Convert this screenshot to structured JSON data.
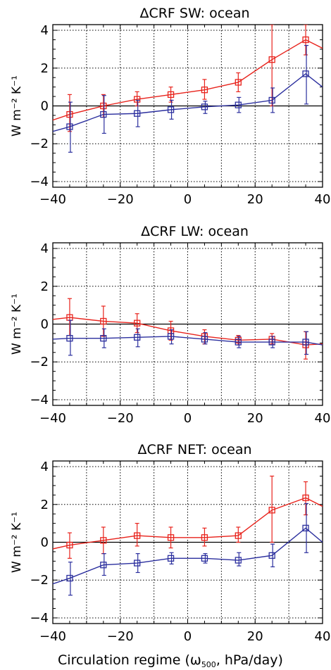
{
  "xlabel": "Circulation regime (ω",
  "xlabel_sub": "500",
  "xlabel_tail": ", hPa/day)",
  "colors": {
    "red": "#e8231c",
    "blue": "#2b2f9e",
    "grid": "#000000"
  },
  "chart_data": [
    {
      "type": "line",
      "title": "ΔCRF SW: ocean",
      "ylabel": "W m⁻² K⁻¹",
      "xlim": [
        -40,
        40
      ],
      "ylim": [
        -4.3,
        4.3
      ],
      "xticks": [
        -40,
        -20,
        0,
        20,
        40
      ],
      "yticks": [
        -4,
        -2,
        0,
        2,
        4
      ],
      "grid": true,
      "x": [
        -35,
        -25,
        -15,
        -5,
        5,
        15,
        25,
        35
      ],
      "series": [
        {
          "color": "red",
          "values": [
            -0.45,
            0.0,
            0.35,
            0.6,
            0.85,
            1.25,
            2.45,
            3.5
          ],
          "err_lo": [
            -1.35,
            -0.6,
            0.0,
            0.2,
            0.35,
            0.75,
            0.0,
            2.7
          ],
          "err_hi": [
            0.6,
            0.6,
            0.75,
            1.0,
            1.4,
            1.75,
            4.3,
            4.3
          ],
          "ends": [
            -0.75,
            3.05
          ]
        },
        {
          "color": "blue",
          "values": [
            -1.1,
            -0.45,
            -0.4,
            -0.2,
            -0.05,
            0.05,
            0.3,
            1.7
          ],
          "err_lo": [
            -2.45,
            -1.45,
            -1.1,
            -0.7,
            -0.4,
            -0.35,
            -0.35,
            0.1
          ],
          "err_hi": [
            0.2,
            0.55,
            0.3,
            0.3,
            0.25,
            0.45,
            0.95,
            3.2
          ],
          "ends": [
            -1.35,
            1.0
          ]
        }
      ]
    },
    {
      "type": "line",
      "title": "ΔCRF LW: ocean",
      "ylabel": "W m⁻² K⁻¹",
      "xlim": [
        -40,
        40
      ],
      "ylim": [
        -4.3,
        4.3
      ],
      "xticks": [
        -40,
        -20,
        0,
        20,
        40
      ],
      "yticks": [
        -4,
        -2,
        0,
        2,
        4
      ],
      "grid": true,
      "x": [
        -35,
        -25,
        -15,
        -5,
        5,
        15,
        25,
        35
      ],
      "series": [
        {
          "color": "red",
          "values": [
            0.35,
            0.15,
            0.05,
            -0.35,
            -0.65,
            -0.85,
            -0.8,
            -1.1
          ],
          "err_lo": [
            -0.6,
            -0.65,
            -0.45,
            -0.85,
            -1.05,
            -1.1,
            -1.05,
            -1.85
          ],
          "err_hi": [
            1.35,
            0.95,
            0.55,
            0.15,
            -0.3,
            -0.6,
            -0.5,
            -0.4
          ],
          "ends": [
            0.25,
            -1.05
          ]
        },
        {
          "color": "blue",
          "values": [
            -0.75,
            -0.75,
            -0.7,
            -0.65,
            -0.8,
            -0.95,
            -0.95,
            -0.95
          ],
          "err_lo": [
            -1.65,
            -1.25,
            -1.2,
            -1.05,
            -1.05,
            -1.25,
            -1.25,
            -1.6
          ],
          "err_hi": [
            0.2,
            -0.25,
            -0.25,
            -0.3,
            -0.45,
            -0.65,
            -0.65,
            -0.4
          ],
          "ends": [
            -0.8,
            -1.1
          ]
        }
      ]
    },
    {
      "type": "line",
      "title": "ΔCRF NET: ocean",
      "ylabel": "W m⁻² K⁻¹",
      "xlim": [
        -40,
        40
      ],
      "ylim": [
        -4.3,
        4.3
      ],
      "xticks": [
        -40,
        -20,
        0,
        20,
        40
      ],
      "yticks": [
        -4,
        -2,
        0,
        2,
        4
      ],
      "grid": true,
      "x": [
        -35,
        -25,
        -15,
        -5,
        5,
        15,
        25,
        35
      ],
      "series": [
        {
          "color": "red",
          "values": [
            -0.15,
            0.1,
            0.35,
            0.25,
            0.25,
            0.35,
            1.7,
            2.35
          ],
          "err_lo": [
            -0.85,
            -0.6,
            -0.2,
            -0.3,
            -0.2,
            0.0,
            0.0,
            1.45
          ],
          "err_hi": [
            0.5,
            0.8,
            1.0,
            0.8,
            0.75,
            0.8,
            3.5,
            3.2
          ],
          "ends": [
            -0.35,
            1.9
          ]
        },
        {
          "color": "blue",
          "values": [
            -1.9,
            -1.2,
            -1.1,
            -0.85,
            -0.85,
            -0.95,
            -0.7,
            0.75
          ],
          "err_lo": [
            -2.8,
            -1.75,
            -1.6,
            -1.15,
            -1.1,
            -1.25,
            -1.3,
            -0.55
          ],
          "err_hi": [
            -1.05,
            -0.6,
            -0.6,
            -0.55,
            -0.6,
            -0.55,
            -0.1,
            2.05
          ],
          "ends": [
            -2.2,
            0.0
          ]
        }
      ]
    }
  ]
}
